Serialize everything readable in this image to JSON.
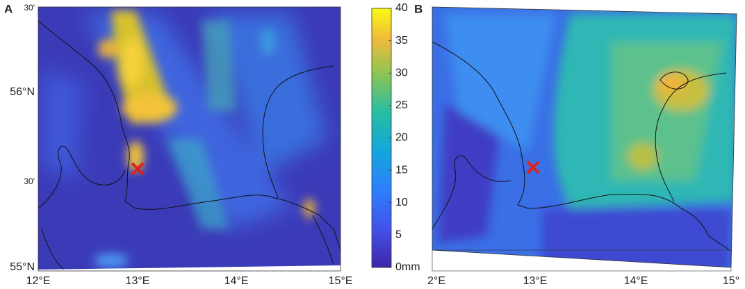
{
  "panel_a": {
    "label": "A",
    "y_labels": [
      "30'",
      "56°N",
      "30'",
      "55°N"
    ],
    "x_labels": [
      "12°E",
      "13°E",
      "14°E",
      "15°E"
    ]
  },
  "colorbar": {
    "range": [
      0,
      40
    ],
    "ticks": [
      {
        "value": 0,
        "label": "0mm"
      },
      5,
      10,
      15,
      20,
      25,
      30,
      35,
      40
    ]
  },
  "panel_b": {
    "label": "B",
    "x_labels": [
      "2°E",
      "13°E",
      "14°E",
      "15°"
    ]
  }
}
